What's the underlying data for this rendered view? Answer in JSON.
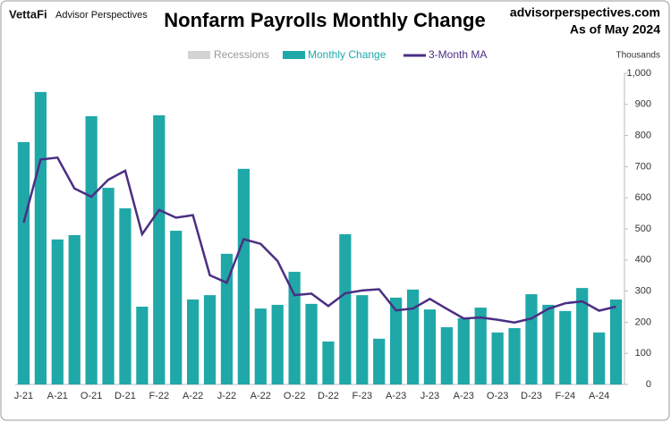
{
  "brand": {
    "logo": "VettaFi",
    "name": "Advisor Perspectives"
  },
  "site": "advisorperspectives.com",
  "as_of": "As of May 2024",
  "chart_data": {
    "type": "bar-line",
    "title": "Nonfarm Payrolls Monthly Change",
    "y_axis_label": "Thousands",
    "recessions": {
      "name": "Recessions",
      "color": "#d3d3d3"
    },
    "categories": [
      "J-21",
      null,
      "A-21",
      null,
      "O-21",
      null,
      "D-21",
      null,
      "F-22",
      null,
      "A-22",
      null,
      "J-22",
      null,
      "A-22",
      null,
      "O-22",
      null,
      "D-22",
      null,
      "F-23",
      null,
      "A-23",
      null,
      "J-23",
      null,
      "A-23",
      null,
      "O-23",
      null,
      "D-23",
      null,
      "F-24",
      null,
      "A-24",
      null
    ],
    "series": [
      {
        "name": "Monthly Change",
        "color": "#20a8a8",
        "kind": "bar",
        "values": [
          779,
          940,
          466,
          480,
          862,
          632,
          566,
          250,
          865,
          494,
          273,
          287,
          420,
          693,
          244,
          256,
          362,
          259,
          138,
          483,
          287,
          147,
          279,
          305,
          241,
          184,
          213,
          247,
          167,
          181,
          290,
          256,
          236,
          310,
          167,
          273
        ]
      },
      {
        "name": "3-Month MA",
        "color": "#4b2e83",
        "kind": "line",
        "values": [
          520,
          723,
          729,
          630,
          603,
          658,
          687,
          483,
          561,
          536,
          544,
          351,
          327,
          467,
          452,
          397,
          287,
          292,
          252,
          293,
          302,
          306,
          238,
          244,
          275,
          243,
          212,
          215,
          208,
          199,
          212,
          243,
          261,
          267,
          237,
          250
        ]
      }
    ],
    "ylim": [
      0,
      1000
    ],
    "yticks": [
      0,
      100,
      200,
      300,
      400,
      500,
      600,
      700,
      800,
      900,
      {
        "value": 1000,
        "label": "1,000"
      }
    ],
    "y_axis_side": "right"
  }
}
